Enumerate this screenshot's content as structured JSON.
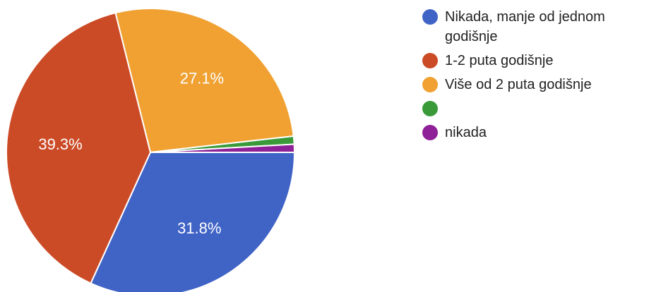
{
  "chart_data": {
    "type": "pie",
    "slices": [
      {
        "label": "Nikada, manje od jednom godišnje",
        "value": 31.8,
        "display": "31.8%",
        "color": "#4063c6"
      },
      {
        "label": "1-2 puta godišnje",
        "value": 39.3,
        "display": "39.3%",
        "color": "#cc4b27"
      },
      {
        "label": "Više od 2 puta godišnje",
        "value": 27.1,
        "display": "27.1%",
        "color": "#f0a132"
      },
      {
        "label": "",
        "value": 0.9,
        "display": "",
        "color": "#3a9a3a"
      },
      {
        "label": "nikada",
        "value": 0.9,
        "display": "",
        "color": "#8e2098"
      }
    ],
    "start_direction": "3 o'clock",
    "direction": "clockwise",
    "legend_position": "right"
  }
}
